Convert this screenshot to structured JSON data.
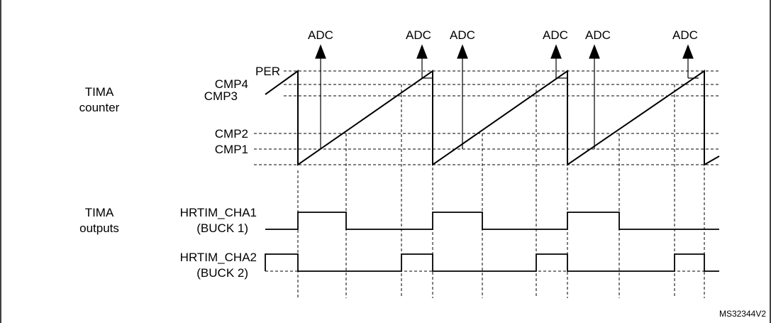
{
  "labels": {
    "section_counter_line1": "TIMA",
    "section_counter_line2": "counter",
    "section_outputs_line1": "TIMA",
    "section_outputs_line2": "outputs",
    "per": "PER",
    "cmp4": "CMP4",
    "cmp3": "CMP3",
    "cmp2": "CMP2",
    "cmp1": "CMP1",
    "channel1_line1": "HRTIM_CHA1",
    "channel1_line2": "(BUCK 1)",
    "channel2_line1": "HRTIM_CHA2",
    "channel2_line2": "(BUCK 2)",
    "adc": "ADC",
    "figure_ref": "MS32344V2"
  },
  "adc_trigger_count": 6,
  "counter_cycles_shown": 3
}
